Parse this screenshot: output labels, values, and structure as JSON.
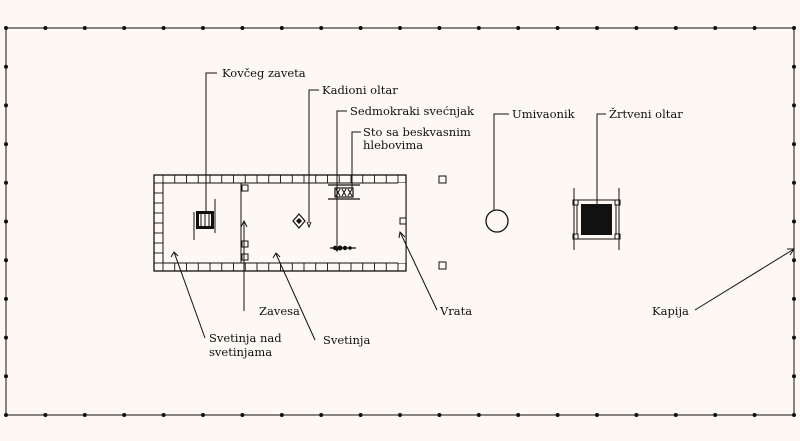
{
  "labels": {
    "ark": "Kovčeg zaveta",
    "incense_altar": "Kadioni oltar",
    "menorah": "Sedmokraki svećnjak",
    "table_line1": "Sto sa beskvasnim",
    "table_line2": "hlebovima",
    "laver": "Umivaonik",
    "burnt_altar": "Žrtveni oltar",
    "holy_of_holies_line1": "Svetinja nad",
    "holy_of_holies_line2": "svetinjama",
    "veil": "Zavesa",
    "holy_place": "Svetinja",
    "door": "Vrata",
    "gate": "Kapija"
  },
  "colors": {
    "background": "#fdf8f3",
    "ink": "#111111"
  }
}
